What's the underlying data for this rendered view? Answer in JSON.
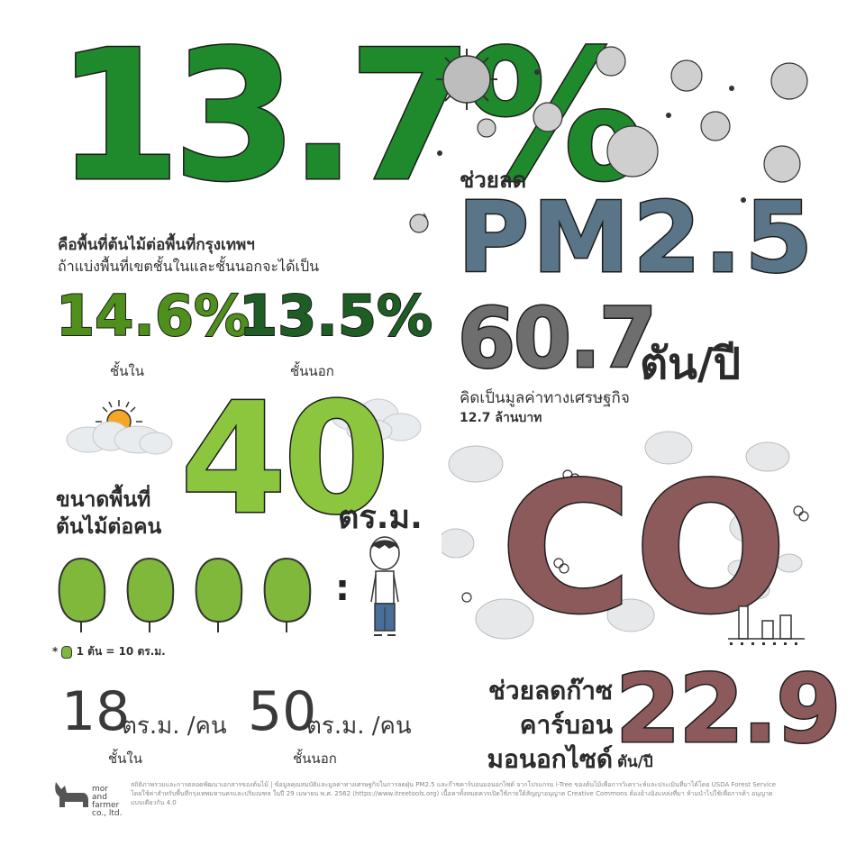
{
  "colors": {
    "dark_green": "#1f8a2c",
    "mid_green": "#4f8f1c",
    "deep_green": "#1e5e25",
    "lime": "#8cc63e",
    "slate": "#5a7587",
    "grey": "#6e6e6e",
    "maroon": "#8c5a5a",
    "sun": "#f5a623"
  },
  "green_section": {
    "headline_pct": "13.7%",
    "headline_caption": "คือพื้นที่ต้นไม้ต่อพื้นที่กรุงเทพฯ",
    "subcaption": "ถ้าแบ่งพื้นที่เขตชั้นในและชั้นนอกจะได้เป็น",
    "inner_pct": "14.6%",
    "inner_label": "ชั้นใน",
    "outer_pct": "13.5%",
    "outer_label": "ชั้นนอก"
  },
  "per_person": {
    "label_line1": "ขนาดพื้นที่",
    "label_line2": "ต้นไม้ต่อคน",
    "value": "40",
    "unit": "ตร.ม.",
    "ratio_symbol": ":",
    "legend": "1 ต้น = 10 ตร.ม.",
    "inner_value": "18",
    "inner_unit": "ตร.ม. /คน",
    "inner_label": "ชั้นใน",
    "outer_value": "50",
    "outer_unit": "ตร.ม. /คน",
    "outer_label": "ชั้นนอก"
  },
  "pm_section": {
    "heading": "ช่วยลด",
    "title": "PM2.5",
    "value": "60.7",
    "unit": "ตัน/ปี",
    "note_line1": "คิดเป็นมูลค่าทางเศรษฐกิจ",
    "note_line2": "12.7 ล้านบาท"
  },
  "co_section": {
    "symbol": "CO",
    "label_line1": "ช่วยลดก๊าซ",
    "label_line2": "คาร์บอน",
    "label_line3": "มอนอกไซด์",
    "value": "22.9",
    "unit": "ตัน/ปี"
  },
  "footer": {
    "brand_line1": "mor",
    "brand_line2": "and",
    "brand_line3": "farmer",
    "brand_line4": "co., ltd.",
    "credit": "สถิติภาพรวมและการตลอดพัฒนาเอกสารของต้นไม้ | ข้อมูลคุณสมบัติและมูลค่าทางเศรษฐกิจในการลดฝุ่น PM2.5 และก๊าซคาร์บอนมอนอกไซด์ จากโปรแกรม i-Tree ของต้นไม้เพื่อการวิเคราะห์และประเมินที่มาได้โดย USDA Forest Service โดยใช้ค่าสำหรับพื้นที่กรุงเทพมหานครและปริมณฑล ในปี 29 เมษายน พ.ศ. 2562 (https://www.itreetools.org) เนื้อหาทั้งหมดควรเปิดใช้ภายใต้สัญญาอนุญาต Creative Commons ต้องอ้างอิงแหล่งที่มา ห้ามนำไปใช้เพื่อการค้า อนุญาตแบบเดียวกัน 4.0"
  }
}
